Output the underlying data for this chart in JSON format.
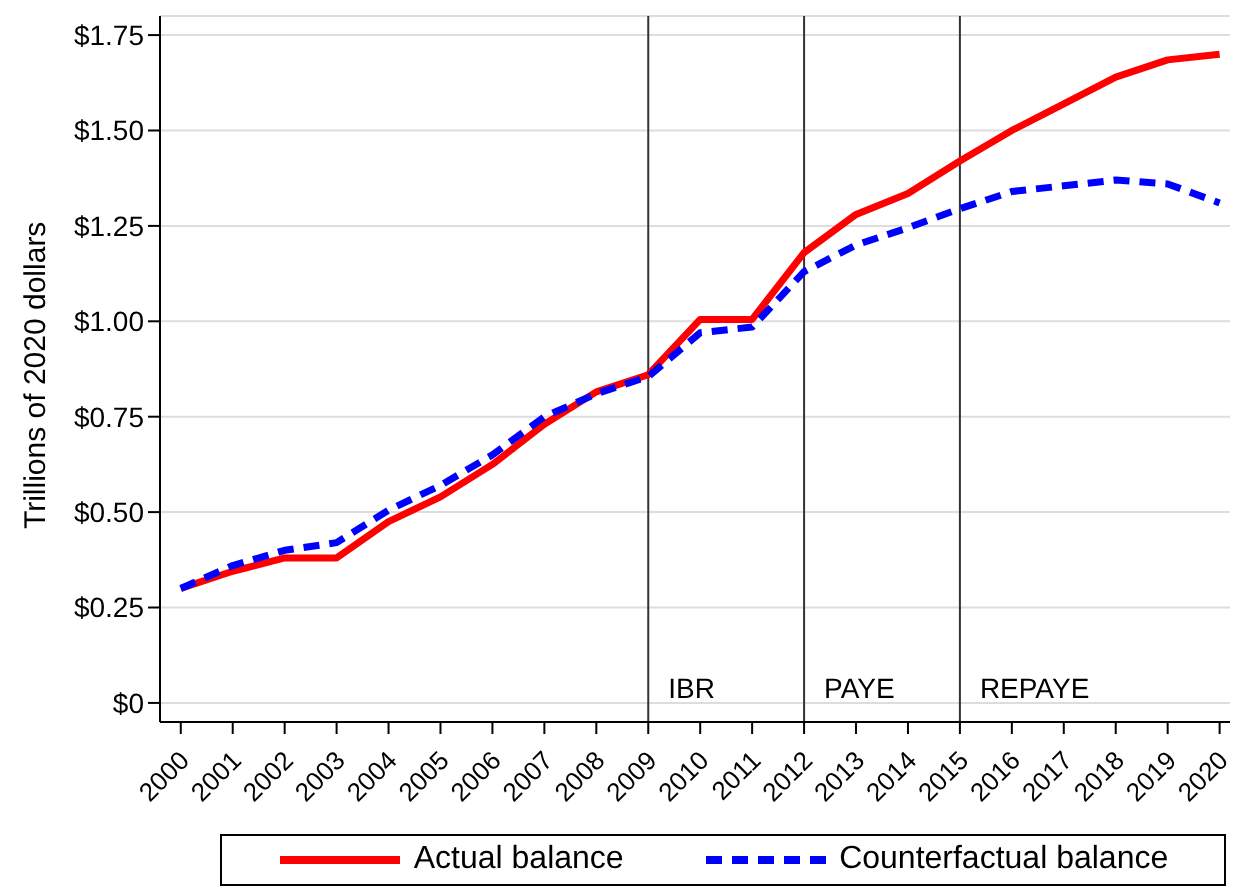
{
  "chart_data": {
    "type": "line",
    "ylabel": "Trillions of 2020 dollars",
    "x": [
      2000,
      2001,
      2002,
      2003,
      2004,
      2005,
      2006,
      2007,
      2008,
      2009,
      2010,
      2011,
      2012,
      2013,
      2014,
      2015,
      2016,
      2017,
      2018,
      2019,
      2020
    ],
    "series": [
      {
        "name": "Actual balance",
        "color": "#ff0000",
        "line_style": "solid",
        "values": [
          0.3,
          0.345,
          0.38,
          0.38,
          0.475,
          0.54,
          0.625,
          0.73,
          0.815,
          0.86,
          1.005,
          1.005,
          1.18,
          1.28,
          1.335,
          1.42,
          1.5,
          1.57,
          1.64,
          1.685,
          1.7
        ]
      },
      {
        "name": "Counterfactual balance",
        "color": "#0000ff",
        "line_style": "dashed",
        "values": [
          0.3,
          0.36,
          0.4,
          0.42,
          0.505,
          0.57,
          0.65,
          0.75,
          0.81,
          0.855,
          0.97,
          0.985,
          1.13,
          1.2,
          1.245,
          1.295,
          1.34,
          1.355,
          1.37,
          1.36,
          1.31
        ]
      }
    ],
    "xlim": [
      1999.6,
      2020.2
    ],
    "xticks": [
      2000,
      2001,
      2002,
      2003,
      2004,
      2005,
      2006,
      2007,
      2008,
      2009,
      2010,
      2011,
      2012,
      2013,
      2014,
      2015,
      2016,
      2017,
      2018,
      2019,
      2020
    ],
    "ylim": [
      -0.05,
      1.8
    ],
    "yticks": [
      {
        "value": 0,
        "label": "$0"
      },
      {
        "value": 0.25,
        "label": "$0.25"
      },
      {
        "value": 0.5,
        "label": "$0.50"
      },
      {
        "value": 0.75,
        "label": "$0.75"
      },
      {
        "value": 1,
        "label": "$1.00"
      },
      {
        "value": 1.25,
        "label": "$1.25"
      },
      {
        "value": 1.5,
        "label": "$1.50"
      },
      {
        "value": 1.75,
        "label": "$1.75"
      }
    ],
    "ref_lines": [
      {
        "axis": "x",
        "value": 2009,
        "label": "IBR",
        "color": "#333333"
      },
      {
        "axis": "x",
        "value": 2012,
        "label": "PAYE",
        "color": "#333333"
      },
      {
        "axis": "x",
        "value": 2015,
        "label": "REPAYE",
        "color": "#333333"
      }
    ],
    "grid": "y",
    "legend": "bottom",
    "marker": "none"
  }
}
